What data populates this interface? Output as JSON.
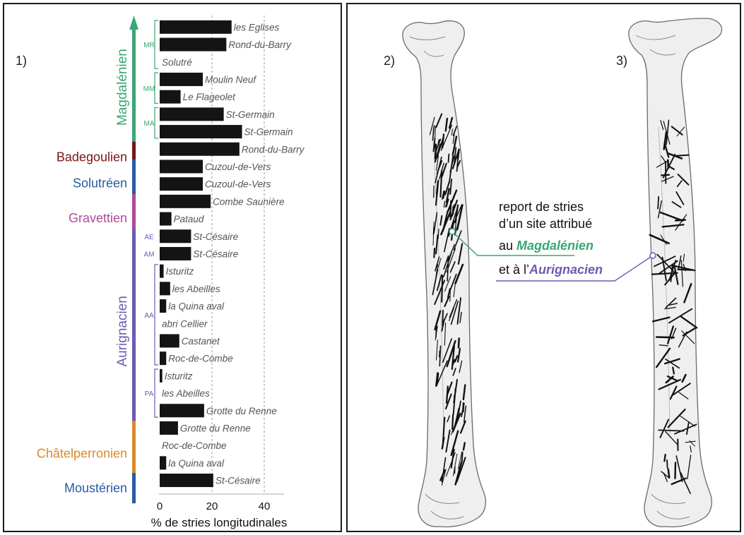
{
  "panel_labels": {
    "p1": "1)",
    "p2": "2)",
    "p3": "3)"
  },
  "chart_data": {
    "type": "bar",
    "orientation": "horizontal",
    "xlabel": "% de stries longitudinales",
    "xlim": [
      0,
      47
    ],
    "xticks": [
      0,
      20,
      40
    ],
    "grid_x": [
      20,
      40
    ],
    "categories": [
      "les Eglises",
      "Rond-du-Barry",
      "Solutré",
      "Moulin Neuf",
      "Le Flageolet",
      "St-Germain",
      "St-Germain",
      "Rond-du-Barry",
      "Cuzoul-de-Vers",
      "Cuzoul-de-Vers",
      "Combe Saunière",
      "Pataud",
      "St-Césaire",
      "St-Césaire",
      "Isturitz",
      "les Abeilles",
      "la Quina aval",
      "abri Cellier",
      "Castanet",
      "Roc-de-Combe",
      "Isturitz",
      "les Abeilles",
      "Grotte du Renne",
      "Grotte du Renne",
      "Roc-de-Combe",
      "la Quina aval",
      "St-Césaire"
    ],
    "values": [
      27.5,
      25.5,
      0,
      16.5,
      8,
      24.5,
      31.5,
      30.5,
      16.5,
      16.5,
      19.5,
      4.5,
      12,
      12,
      1.5,
      4,
      2.5,
      0,
      7.5,
      2.5,
      1,
      0,
      17,
      7,
      0,
      2.5,
      20.5
    ],
    "periods": [
      {
        "name": "Magdalénien",
        "color": "#3aa676",
        "arrow": true
      },
      {
        "name": "Badegoulien",
        "color": "#7a1616"
      },
      {
        "name": "Solutréen",
        "color": "#2b5aa3"
      },
      {
        "name": "Gravettien",
        "color": "#b04a9a"
      },
      {
        "name": "Aurignacien",
        "color": "#6a5cb0"
      },
      {
        "name": "Châtelperronien",
        "color": "#d9892b"
      },
      {
        "name": "Moustérien",
        "color": "#2b5aa3"
      }
    ],
    "subperiods": [
      {
        "name": "MR",
        "color": "#3aa676"
      },
      {
        "name": "MM",
        "color": "#3aa676"
      },
      {
        "name": "MA",
        "color": "#3aa676"
      },
      {
        "name": "AE",
        "color": "#6a5cb0"
      },
      {
        "name": "AM",
        "color": "#6a5cb0"
      },
      {
        "name": "AA",
        "color": "#6a5cb0"
      },
      {
        "name": "PA",
        "color": "#6a5cb0"
      }
    ]
  },
  "annotation": {
    "line1": "report de stries",
    "line2": "d’un site attribué",
    "line3_prefix": "au ",
    "line3_em": "Magdalénien",
    "line4_prefix": "et à l’",
    "line4_em": "Aurignacien",
    "color_magdalenien": "#3aa676",
    "color_aurignacien": "#6a5cb0"
  }
}
